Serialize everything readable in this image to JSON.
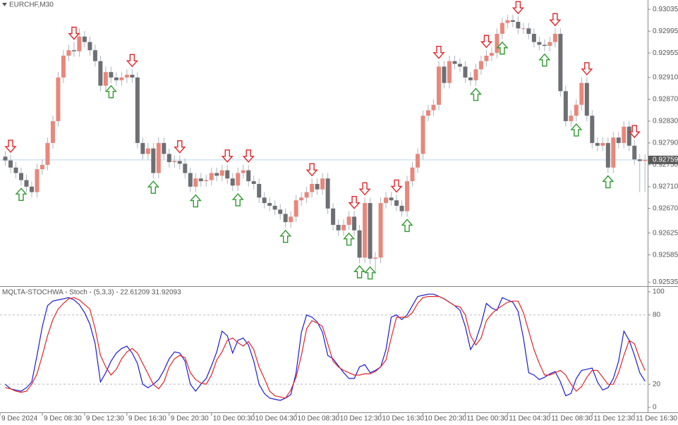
{
  "chart_data": [
    {
      "type": "candlestick",
      "title": "EURCHF,M30",
      "up_color": "#e8877b",
      "down_color": "#6d6f73",
      "xlim": [
        -1,
        121.5
      ],
      "xticks": [
        {
          "value": -1,
          "label": "9 Dec 2024"
        },
        {
          "value": 7,
          "label": "9 Dec 08:30"
        },
        {
          "value": 15,
          "label": "9 Dec 12:30"
        },
        {
          "value": 23,
          "label": "9 Dec 16:30"
        },
        {
          "value": 31,
          "label": "9 Dec 20:30"
        },
        {
          "value": 39,
          "label": "10 Dec 00:30"
        },
        {
          "value": 47,
          "label": "10 Dec 04:30"
        },
        {
          "value": 55,
          "label": "10 Dec 08:30"
        },
        {
          "value": 63,
          "label": "10 Dec 12:30"
        },
        {
          "value": 71,
          "label": "10 Dec 16:30"
        },
        {
          "value": 79,
          "label": "10 Dec 20:30"
        },
        {
          "value": 87,
          "label": "11 Dec 00:30"
        },
        {
          "value": 95,
          "label": "11 Dec 04:30"
        },
        {
          "value": 103,
          "label": "11 Dec 08:30"
        },
        {
          "value": 111,
          "label": "11 Dec 12:30"
        },
        {
          "value": 119,
          "label": "11 Dec 16:30"
        }
      ],
      "ylim": [
        0.92529,
        0.93052
      ],
      "yticks": [
        0.93035,
        0.92995,
        0.92955,
        {
          "value": 0.9291,
          "label": "0.92910"
        },
        {
          "value": 0.9287,
          "label": "0.92870"
        },
        {
          "value": 0.9283,
          "label": "0.92830"
        },
        {
          "value": 0.9279,
          "label": "0.92790"
        },
        {
          "value": 0.9275,
          "label": "0.92750"
        },
        {
          "value": 0.9271,
          "label": "0.92710"
        },
        {
          "value": 0.9267,
          "label": "0.92670"
        },
        0.92625,
        0.92585,
        0.92535
      ],
      "last_price": 0.92759,
      "sell_color": "#e0262a",
      "buy_color": "#2f9a2f",
      "sell_signals": [
        1,
        13,
        24,
        33,
        42,
        46,
        58,
        66,
        68,
        74,
        82,
        91,
        97,
        104,
        110,
        119
      ],
      "buy_signals": [
        3,
        20,
        28,
        36,
        44,
        53,
        65,
        67,
        69,
        76,
        89,
        94,
        102,
        108,
        114
      ],
      "ohlc": [
        [
          0.92765,
          0.92775,
          0.92748,
          0.92758
        ],
        [
          0.92758,
          0.92768,
          0.92735,
          0.92745
        ],
        [
          0.92745,
          0.92755,
          0.92725,
          0.92735
        ],
        [
          0.92735,
          0.92745,
          0.92712,
          0.92722
        ],
        [
          0.92722,
          0.92732,
          0.927,
          0.9271
        ],
        [
          0.9271,
          0.9272,
          0.9269,
          0.927
        ],
        [
          0.927,
          0.92752,
          0.9269,
          0.92742
        ],
        [
          0.92742,
          0.9276,
          0.92732,
          0.9275
        ],
        [
          0.9275,
          0.928,
          0.9274,
          0.9279
        ],
        [
          0.9279,
          0.9284,
          0.9278,
          0.9283
        ],
        [
          0.9283,
          0.9292,
          0.9282,
          0.9291
        ],
        [
          0.9291,
          0.9296,
          0.929,
          0.9295
        ],
        [
          0.9295,
          0.9297,
          0.9294,
          0.9296
        ],
        [
          0.9296,
          0.92975,
          0.92948,
          0.92958
        ],
        [
          0.92958,
          0.93,
          0.92948,
          0.92985
        ],
        [
          0.92985,
          0.92995,
          0.92965,
          0.92975
        ],
        [
          0.92975,
          0.92985,
          0.9295,
          0.9296
        ],
        [
          0.9296,
          0.9297,
          0.9293,
          0.9294
        ],
        [
          0.9294,
          0.9295,
          0.92885,
          0.92895
        ],
        [
          0.92895,
          0.9293,
          0.92885,
          0.9292
        ],
        [
          0.9292,
          0.9293,
          0.929,
          0.9291
        ],
        [
          0.9291,
          0.9292,
          0.92895,
          0.92905
        ],
        [
          0.92905,
          0.9292,
          0.92895,
          0.9291
        ],
        [
          0.9291,
          0.92925,
          0.929,
          0.92915
        ],
        [
          0.92915,
          0.92925,
          0.929,
          0.9291
        ],
        [
          0.9291,
          0.9292,
          0.9278,
          0.9279
        ],
        [
          0.9279,
          0.928,
          0.9276,
          0.9277
        ],
        [
          0.9277,
          0.9279,
          0.9276,
          0.9278
        ],
        [
          0.9278,
          0.9279,
          0.92725,
          0.92735
        ],
        [
          0.92735,
          0.928,
          0.92725,
          0.9279
        ],
        [
          0.9279,
          0.928,
          0.9276,
          0.9277
        ],
        [
          0.9277,
          0.9278,
          0.92745,
          0.92755
        ],
        [
          0.92755,
          0.92767,
          0.92745,
          0.92757
        ],
        [
          0.92757,
          0.92767,
          0.92742,
          0.92752
        ],
        [
          0.92752,
          0.92762,
          0.92725,
          0.92735
        ],
        [
          0.92735,
          0.92745,
          0.927,
          0.9271
        ],
        [
          0.9271,
          0.92735,
          0.927,
          0.92725
        ],
        [
          0.92725,
          0.92735,
          0.9271,
          0.9272
        ],
        [
          0.9272,
          0.92732,
          0.9271,
          0.92722
        ],
        [
          0.92722,
          0.92745,
          0.92712,
          0.92735
        ],
        [
          0.92735,
          0.92745,
          0.9272,
          0.9273
        ],
        [
          0.9273,
          0.9275,
          0.9272,
          0.9274
        ],
        [
          0.9274,
          0.9275,
          0.92715,
          0.92725
        ],
        [
          0.92725,
          0.92735,
          0.92702,
          0.92712
        ],
        [
          0.92712,
          0.92745,
          0.92702,
          0.92735
        ],
        [
          0.92735,
          0.9275,
          0.92725,
          0.9274
        ],
        [
          0.9274,
          0.9275,
          0.9271,
          0.9272
        ],
        [
          0.9272,
          0.9273,
          0.92705,
          0.92715
        ],
        [
          0.92715,
          0.92725,
          0.9268,
          0.9269
        ],
        [
          0.9269,
          0.927,
          0.9267,
          0.9268
        ],
        [
          0.9268,
          0.9269,
          0.92665,
          0.92675
        ],
        [
          0.92675,
          0.92685,
          0.92658,
          0.92668
        ],
        [
          0.92668,
          0.92678,
          0.9265,
          0.9266
        ],
        [
          0.9266,
          0.9267,
          0.92635,
          0.92645
        ],
        [
          0.92645,
          0.92665,
          0.92635,
          0.92655
        ],
        [
          0.92655,
          0.92695,
          0.92645,
          0.92685
        ],
        [
          0.92685,
          0.927,
          0.92675,
          0.9269
        ],
        [
          0.9269,
          0.9271,
          0.9268,
          0.927
        ],
        [
          0.927,
          0.92725,
          0.9269,
          0.92715
        ],
        [
          0.92715,
          0.92725,
          0.92695,
          0.92705
        ],
        [
          0.92705,
          0.92735,
          0.92695,
          0.92725
        ],
        [
          0.92725,
          0.92735,
          0.9266,
          0.9267
        ],
        [
          0.9267,
          0.9268,
          0.9263,
          0.9264
        ],
        [
          0.9264,
          0.9265,
          0.9262,
          0.9263
        ],
        [
          0.9263,
          0.9265,
          0.9262,
          0.9264
        ],
        [
          0.9264,
          0.92665,
          0.9263,
          0.92655
        ],
        [
          0.92655,
          0.92665,
          0.9262,
          0.9263
        ],
        [
          0.9263,
          0.9264,
          0.9257,
          0.9258
        ],
        [
          0.9258,
          0.9269,
          0.9257,
          0.9268
        ],
        [
          0.9268,
          0.9269,
          0.92568,
          0.92578
        ],
        [
          0.92578,
          0.9259,
          0.9255,
          0.9258
        ],
        [
          0.9258,
          0.9269,
          0.9257,
          0.9268
        ],
        [
          0.9268,
          0.927,
          0.9267,
          0.9269
        ],
        [
          0.9269,
          0.927,
          0.92675,
          0.92685
        ],
        [
          0.92685,
          0.92695,
          0.92665,
          0.92675
        ],
        [
          0.92675,
          0.92685,
          0.92655,
          0.92665
        ],
        [
          0.92665,
          0.9273,
          0.92655,
          0.9272
        ],
        [
          0.9272,
          0.92755,
          0.9271,
          0.92745
        ],
        [
          0.92745,
          0.9278,
          0.92735,
          0.9277
        ],
        [
          0.9277,
          0.9285,
          0.9276,
          0.9284
        ],
        [
          0.9284,
          0.9286,
          0.9283,
          0.9285
        ],
        [
          0.9285,
          0.9287,
          0.9284,
          0.9286
        ],
        [
          0.9286,
          0.9294,
          0.9285,
          0.9293
        ],
        [
          0.9293,
          0.9294,
          0.9289,
          0.929
        ],
        [
          0.929,
          0.9295,
          0.9289,
          0.9294
        ],
        [
          0.9294,
          0.9295,
          0.92925,
          0.92935
        ],
        [
          0.92935,
          0.92945,
          0.9292,
          0.9293
        ],
        [
          0.9293,
          0.9294,
          0.929,
          0.9291
        ],
        [
          0.9291,
          0.9292,
          0.92895,
          0.92905
        ],
        [
          0.92905,
          0.92935,
          0.92895,
          0.92925
        ],
        [
          0.92925,
          0.9295,
          0.92915,
          0.9294
        ],
        [
          0.9294,
          0.9296,
          0.9293,
          0.9295
        ],
        [
          0.9295,
          0.92965,
          0.9294,
          0.92955
        ],
        [
          0.92955,
          0.93,
          0.92945,
          0.9299
        ],
        [
          0.9299,
          0.9302,
          0.9298,
          0.9301
        ],
        [
          0.9301,
          0.93025,
          0.93,
          0.93015
        ],
        [
          0.93015,
          0.93025,
          0.93002,
          0.93012
        ],
        [
          0.93012,
          0.93022,
          0.9299,
          0.93
        ],
        [
          0.93,
          0.9301,
          0.9299,
          0.93
        ],
        [
          0.93,
          0.9301,
          0.9298,
          0.9299
        ],
        [
          0.9299,
          0.93,
          0.92965,
          0.92975
        ],
        [
          0.92975,
          0.92985,
          0.9296,
          0.9297
        ],
        [
          0.9297,
          0.9298,
          0.92958,
          0.92968
        ],
        [
          0.92968,
          0.92985,
          0.92958,
          0.92975
        ],
        [
          0.92975,
          0.93,
          0.92965,
          0.9299
        ],
        [
          0.9299,
          0.93,
          0.92875,
          0.92885
        ],
        [
          0.92885,
          0.92895,
          0.9282,
          0.9283
        ],
        [
          0.9283,
          0.9285,
          0.9282,
          0.9284
        ],
        [
          0.9284,
          0.9287,
          0.9283,
          0.9286
        ],
        [
          0.9286,
          0.9291,
          0.9285,
          0.929
        ],
        [
          0.929,
          0.9291,
          0.9283,
          0.9284
        ],
        [
          0.9284,
          0.9285,
          0.9278,
          0.9279
        ],
        [
          0.9279,
          0.928,
          0.92775,
          0.92785
        ],
        [
          0.92785,
          0.928,
          0.92775,
          0.9279
        ],
        [
          0.9279,
          0.928,
          0.92735,
          0.92745
        ],
        [
          0.92745,
          0.9281,
          0.92735,
          0.928
        ],
        [
          0.928,
          0.9281,
          0.9278,
          0.9279
        ],
        [
          0.9279,
          0.9283,
          0.9278,
          0.9282
        ],
        [
          0.9282,
          0.9283,
          0.92775,
          0.92785
        ],
        [
          0.92785,
          0.92795,
          0.9275,
          0.9276
        ],
        [
          0.9276,
          0.9277,
          0.927,
          0.92757
        ],
        [
          0.92757,
          0.92769,
          0.927,
          0.92759
        ]
      ]
    },
    {
      "type": "line",
      "title": "MQLTA-STOCHWA - Stoch - (5,3,3) - 22.61209  31.92093",
      "ylim": [
        -4.3,
        103.7
      ],
      "yticks": [
        100,
        80,
        20,
        0
      ],
      "levels": [
        80,
        20
      ],
      "series": [
        {
          "color": "#1c1cd6",
          "values": [
            20,
            16,
            15,
            14,
            17,
            22,
            45,
            70,
            88,
            92,
            93,
            94,
            95,
            93,
            89,
            82,
            72,
            55,
            22,
            30,
            40,
            47,
            51,
            53,
            47,
            38,
            20,
            17,
            20,
            24,
            32,
            42,
            48,
            47,
            40,
            20,
            14,
            20,
            25,
            36,
            48,
            66,
            62,
            47,
            58,
            60,
            54,
            40,
            20,
            12,
            8,
            7,
            6,
            8,
            11,
            30,
            65,
            80,
            78,
            74,
            65,
            45,
            42,
            36,
            30,
            25,
            25,
            35,
            37,
            30,
            32,
            35,
            50,
            78,
            80,
            76,
            80,
            88,
            96,
            97,
            98,
            98,
            96,
            94,
            91,
            88,
            84,
            70,
            50,
            58,
            72,
            90,
            86,
            84,
            95,
            93,
            91,
            83,
            60,
            30,
            28,
            24,
            26,
            29,
            31,
            22,
            10,
            12,
            25,
            32,
            33,
            34,
            22,
            15,
            17,
            25,
            40,
            66,
            58,
            45,
            30,
            22.61209
          ]
        },
        {
          "color": "#e0262a",
          "values": [
            17,
            16,
            14,
            13,
            14,
            20,
            29,
            45,
            62,
            76,
            85,
            90,
            94,
            95,
            93,
            89,
            85,
            68,
            45,
            35,
            28,
            33,
            42,
            48,
            51,
            47,
            38,
            29,
            20,
            16,
            22,
            35,
            42,
            45,
            43,
            30,
            24,
            21,
            20,
            28,
            41,
            48,
            58,
            60,
            56,
            53,
            57,
            50,
            35,
            25,
            14,
            10,
            9,
            8,
            15,
            26,
            45,
            68,
            75,
            73,
            70,
            55,
            40,
            35,
            32,
            30,
            28,
            28,
            29,
            29,
            31,
            35,
            41,
            60,
            78,
            78,
            78,
            82,
            90,
            95,
            96,
            96,
            96,
            94,
            91,
            88,
            87,
            80,
            62,
            54,
            60,
            75,
            81,
            85,
            88,
            91,
            92,
            92,
            82,
            66,
            50,
            38,
            28,
            28,
            30,
            32,
            28,
            20,
            14,
            18,
            26,
            32,
            32,
            26,
            20,
            20,
            30,
            45,
            58,
            55,
            42,
            31.92093
          ]
        }
      ]
    }
  ]
}
